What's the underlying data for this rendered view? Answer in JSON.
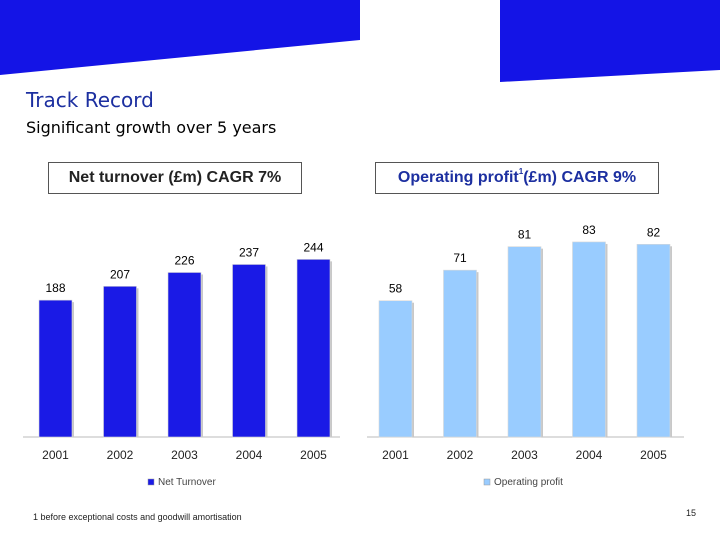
{
  "slide": {
    "title": "Track Record",
    "subtitle": "Significant growth over 5 years",
    "footnote": "1 before exceptional costs and goodwill amortisation",
    "page_number": "15",
    "brand_color": "#1414e6",
    "title_color": "#1c2fa0"
  },
  "chart_data": [
    {
      "type": "bar",
      "title": "Net turnover (£m) CAGR 7%",
      "categories": [
        "2001",
        "2002",
        "2003",
        "2004",
        "2005"
      ],
      "series": [
        {
          "name": "Net Turnover",
          "values": [
            188,
            207,
            226,
            237,
            244
          ],
          "color": "#1a1ae6"
        }
      ],
      "ylim": [
        0,
        260
      ],
      "legend_position": "bottom",
      "grid": false
    },
    {
      "type": "bar",
      "title": "Operating profit",
      "title_superscript": "1",
      "title_suffix": "(£m) CAGR 9%",
      "categories": [
        "2001",
        "2002",
        "2003",
        "2004",
        "2005"
      ],
      "series": [
        {
          "name": "Operating profit",
          "values": [
            58,
            71,
            81,
            83,
            82
          ],
          "color": "#99ccff"
        }
      ],
      "ylim": [
        0,
        100
      ],
      "legend_position": "bottom",
      "grid": false
    }
  ]
}
